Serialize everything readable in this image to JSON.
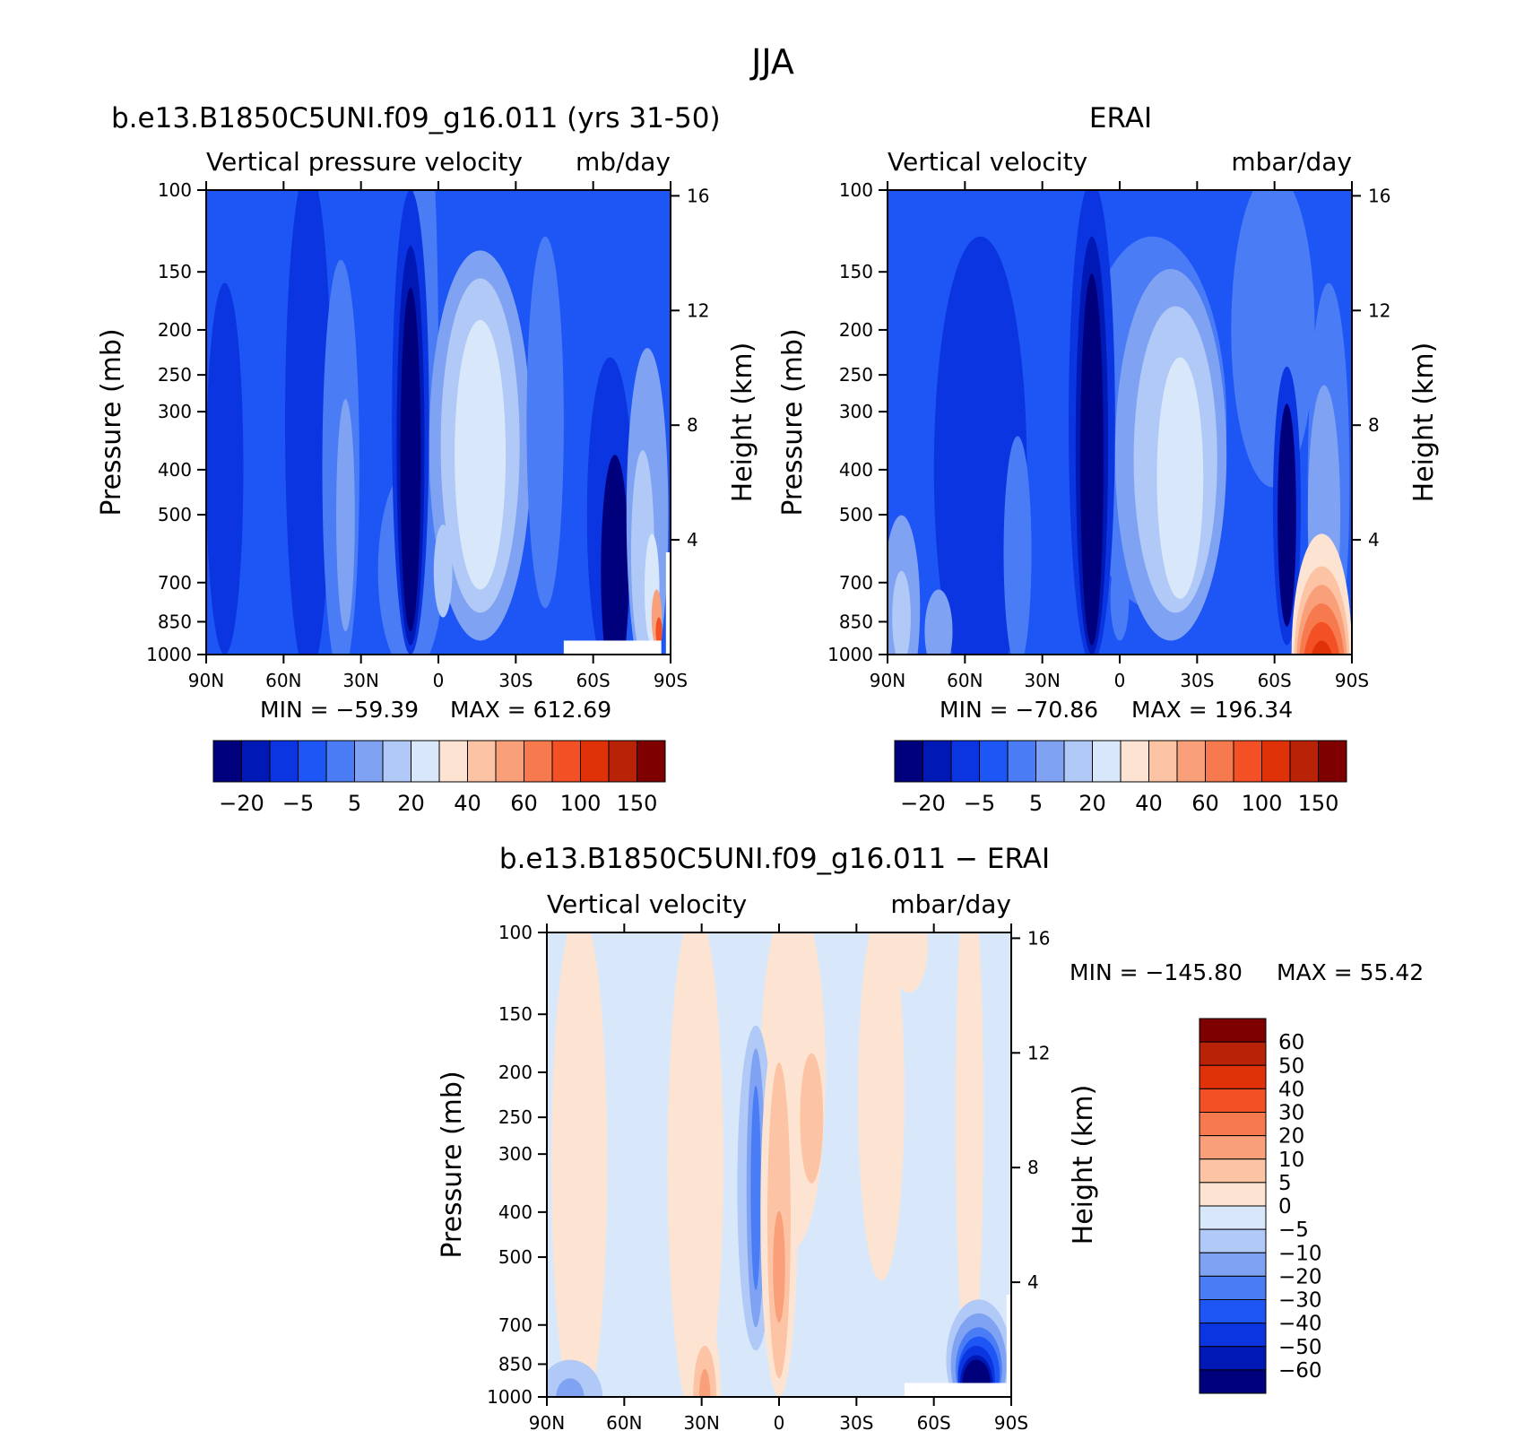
{
  "figure_title": "JJA",
  "chart_data": [
    {
      "type": "heatmap",
      "case_title": "b.e13.B1850C5UNI.f09_g16.011 (yrs 31-50)",
      "left_label": "Vertical pressure velocity",
      "units": "mb/day",
      "ylabel": "Pressure (mb)",
      "ylabel_right": "Height (km)",
      "x_ticks": [
        "90N",
        "60N",
        "30N",
        "0",
        "30S",
        "60S",
        "90S"
      ],
      "y_ticks": [
        100,
        150,
        200,
        250,
        300,
        400,
        500,
        700,
        850,
        1000
      ],
      "y_ticks_right": [
        4,
        8,
        12,
        16
      ],
      "min_label": "MIN = −59.39",
      "max_label": "MAX = 612.69",
      "min": -59.39,
      "max": 612.69,
      "colorbar_labels": [
        "−20",
        "−5",
        "5",
        "20",
        "40",
        "60",
        "100",
        "150"
      ],
      "colorbar_colors": [
        "#00007d",
        "#0018b4",
        "#0a35e0",
        "#1e55f5",
        "#4a7df5",
        "#7fa2f2",
        "#b0c9f6",
        "#d8e8fa",
        "#fde4d2",
        "#fcc4a4",
        "#f9a07a",
        "#f77a4e",
        "#f35026",
        "#df3208",
        "#b82207",
        "#7f0000"
      ]
    },
    {
      "type": "heatmap",
      "case_title": "ERAI",
      "left_label": "Vertical velocity",
      "units": "mbar/day",
      "ylabel": "Pressure (mb)",
      "ylabel_right": "Height (km)",
      "x_ticks": [
        "90N",
        "60N",
        "30N",
        "0",
        "30S",
        "60S",
        "90S"
      ],
      "y_ticks": [
        100,
        150,
        200,
        250,
        300,
        400,
        500,
        700,
        850,
        1000
      ],
      "y_ticks_right": [
        4,
        8,
        12,
        16
      ],
      "min_label": "MIN = −70.86",
      "max_label": "MAX = 196.34",
      "min": -70.86,
      "max": 196.34,
      "colorbar_labels": [
        "−20",
        "−5",
        "5",
        "20",
        "40",
        "60",
        "100",
        "150"
      ],
      "colorbar_colors": [
        "#00007d",
        "#0018b4",
        "#0a35e0",
        "#1e55f5",
        "#4a7df5",
        "#7fa2f2",
        "#b0c9f6",
        "#d8e8fa",
        "#fde4d2",
        "#fcc4a4",
        "#f9a07a",
        "#f77a4e",
        "#f35026",
        "#df3208",
        "#b82207",
        "#7f0000"
      ]
    },
    {
      "type": "heatmap",
      "case_title": "b.e13.B1850C5UNI.f09_g16.011 − ERAI",
      "left_label": "Vertical velocity",
      "units": "mbar/day",
      "ylabel": "Pressure (mb)",
      "ylabel_right": "Height (km)",
      "x_ticks": [
        "90N",
        "60N",
        "30N",
        "0",
        "30S",
        "60S",
        "90S"
      ],
      "y_ticks": [
        100,
        150,
        200,
        250,
        300,
        400,
        500,
        700,
        850,
        1000
      ],
      "y_ticks_right": [
        4,
        8,
        12,
        16
      ],
      "min_label": "MIN = −145.80",
      "max_label": "MAX =   55.42",
      "min": -145.8,
      "max": 55.42,
      "colorbar_labels": [
        "60",
        "50",
        "40",
        "30",
        "20",
        "10",
        "5",
        "0",
        "−5",
        "−10",
        "−20",
        "−30",
        "−40",
        "−50",
        "−60"
      ],
      "colorbar_colors": [
        "#7f0000",
        "#b82207",
        "#df3208",
        "#f35026",
        "#f77a4e",
        "#f9a07a",
        "#fcc4a4",
        "#fde4d2",
        "#d8e8fa",
        "#b0c9f6",
        "#7fa2f2",
        "#4a7df5",
        "#1e55f5",
        "#0a35e0",
        "#0018b4",
        "#00007d"
      ]
    }
  ]
}
